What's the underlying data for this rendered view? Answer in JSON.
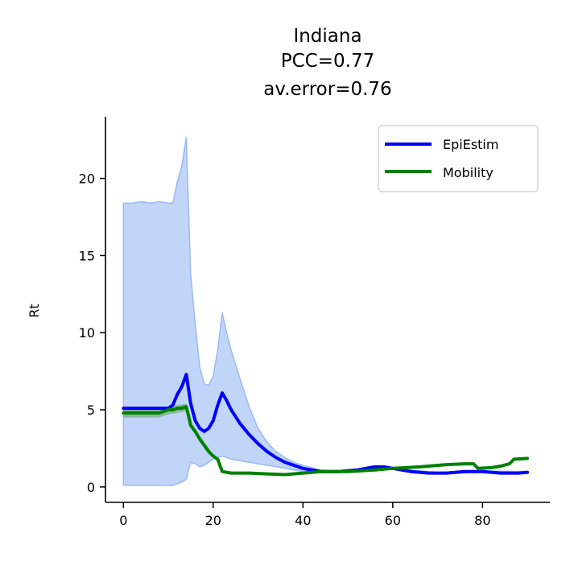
{
  "chart_data": {
    "type": "line",
    "title_lines": [
      "Indiana",
      "PCC=0.77",
      "av.error=0.76"
    ],
    "xlabel": "",
    "ylabel": "Rt",
    "xlim": [
      -4,
      95
    ],
    "ylim": [
      -1,
      24
    ],
    "xticks": [
      0,
      20,
      40,
      60,
      80
    ],
    "yticks": [
      0,
      5,
      10,
      15,
      20
    ],
    "grid": false,
    "legend_position": "top-right",
    "colors": {
      "epiestim": "#0000ff",
      "mobility": "#008000",
      "band": "#6495ed",
      "mobility_band": "#5aa05a"
    },
    "series": [
      {
        "name": "EpiEstim",
        "x": [
          0,
          2,
          4,
          6,
          8,
          10,
          11,
          12,
          13,
          14,
          15,
          16,
          17,
          18,
          19,
          20,
          21,
          22,
          23,
          24,
          26,
          28,
          30,
          32,
          34,
          36,
          38,
          40,
          44,
          48,
          52,
          56,
          58,
          60,
          64,
          68,
          72,
          76,
          80,
          84,
          88,
          90
        ],
        "y": [
          5.1,
          5.1,
          5.1,
          5.1,
          5.1,
          5.1,
          5.3,
          6.0,
          6.5,
          7.3,
          5.4,
          4.3,
          3.8,
          3.6,
          3.8,
          4.3,
          5.3,
          6.1,
          5.6,
          5.0,
          4.1,
          3.4,
          2.8,
          2.3,
          1.9,
          1.6,
          1.4,
          1.2,
          1.0,
          1.0,
          1.1,
          1.3,
          1.3,
          1.2,
          1.0,
          0.9,
          0.9,
          1.0,
          1.0,
          0.9,
          0.9,
          0.95
        ]
      },
      {
        "name": "Mobility",
        "x": [
          0,
          2,
          4,
          6,
          8,
          10,
          11,
          12,
          13,
          14,
          15,
          16,
          17,
          18,
          19,
          20,
          21,
          22,
          24,
          28,
          32,
          36,
          40,
          44,
          50,
          56,
          60,
          66,
          72,
          76,
          78,
          79,
          82,
          84,
          86,
          87,
          90
        ],
        "y": [
          4.8,
          4.8,
          4.8,
          4.8,
          4.8,
          5.0,
          5.0,
          5.1,
          5.1,
          5.2,
          4.0,
          3.6,
          3.1,
          2.7,
          2.3,
          2.0,
          1.8,
          1.0,
          0.9,
          0.9,
          0.85,
          0.8,
          0.9,
          1.0,
          1.0,
          1.1,
          1.2,
          1.3,
          1.45,
          1.5,
          1.5,
          1.2,
          1.25,
          1.35,
          1.5,
          1.8,
          1.85
        ]
      }
    ],
    "band": {
      "x": [
        0,
        2,
        4,
        6,
        8,
        10,
        11,
        12,
        13,
        14,
        15,
        16,
        17,
        18,
        19,
        20,
        21,
        22,
        23,
        24,
        26,
        28,
        30,
        32,
        34,
        36,
        38,
        40,
        44,
        48,
        52,
        56,
        60,
        70,
        80,
        90
      ],
      "upper": [
        18.4,
        18.4,
        18.5,
        18.4,
        18.5,
        18.4,
        18.4,
        19.8,
        20.8,
        22.7,
        13.8,
        10.6,
        7.8,
        6.7,
        6.6,
        7.2,
        8.9,
        11.3,
        10.0,
        8.9,
        7.0,
        5.2,
        3.8,
        2.9,
        2.3,
        1.9,
        1.6,
        1.4,
        1.1,
        1.05,
        1.15,
        1.35,
        1.2,
        0.95,
        1.05,
        1.0
      ],
      "lower": [
        0.1,
        0.1,
        0.1,
        0.1,
        0.1,
        0.1,
        0.1,
        0.2,
        0.3,
        0.5,
        1.6,
        1.5,
        1.3,
        1.4,
        1.6,
        1.8,
        1.9,
        2.0,
        1.9,
        1.8,
        1.7,
        1.6,
        1.5,
        1.4,
        1.3,
        1.2,
        1.1,
        1.0,
        0.95,
        0.95,
        1.0,
        1.2,
        1.15,
        0.85,
        0.95,
        0.9
      ]
    },
    "mobility_band": {
      "x": [
        0,
        4,
        8,
        10,
        12,
        14,
        15,
        16,
        18,
        20
      ],
      "upper": [
        5.0,
        5.0,
        5.0,
        5.2,
        5.3,
        5.4,
        4.2,
        3.8,
        2.9,
        2.1
      ],
      "lower": [
        4.5,
        4.5,
        4.5,
        4.7,
        4.8,
        4.9,
        3.8,
        3.4,
        2.5,
        1.9
      ]
    }
  }
}
